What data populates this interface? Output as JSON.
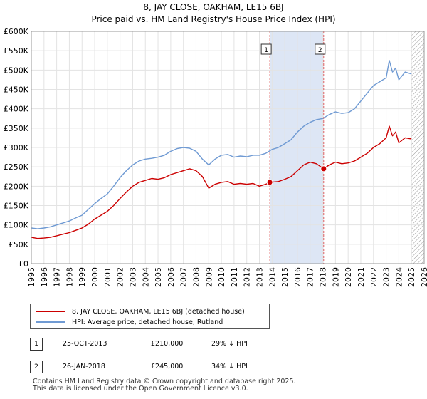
{
  "chart_data": {
    "type": "line",
    "title": "8, JAY CLOSE, OAKHAM, LE15 6BJ",
    "subtitle": "Price paid vs. HM Land Registry's House Price Index (HPI)",
    "x_tick_labels": [
      "1995",
      "1996",
      "1997",
      "1998",
      "1999",
      "2000",
      "2001",
      "2002",
      "2003",
      "2004",
      "2005",
      "2006",
      "2007",
      "2008",
      "2009",
      "2010",
      "2011",
      "2012",
      "2013",
      "2014",
      "2015",
      "2016",
      "2017",
      "2018",
      "2019",
      "2020",
      "2021",
      "2022",
      "2023",
      "2024",
      "2025",
      "2026"
    ],
    "y_tick_labels": [
      "£0",
      "£50K",
      "£100K",
      "£150K",
      "£200K",
      "£250K",
      "£300K",
      "£350K",
      "£400K",
      "£450K",
      "£500K",
      "£550K",
      "£600K"
    ],
    "xlim": [
      1995,
      2026
    ],
    "ylim": [
      0,
      600000
    ],
    "grid": true,
    "highlight_band": {
      "from": 2013.82,
      "to": 2018.07
    },
    "data_end": 2025.0,
    "series": [
      {
        "name": "8, JAY CLOSE, OAKHAM, LE15 6BJ (detached house)",
        "color": "#cc0000",
        "x": [
          1995.0,
          1995.5,
          1996.0,
          1996.5,
          1997.0,
          1997.5,
          1998.0,
          1998.5,
          1999.0,
          1999.5,
          2000.0,
          2000.5,
          2001.0,
          2001.5,
          2002.0,
          2002.5,
          2003.0,
          2003.5,
          2004.0,
          2004.5,
          2005.0,
          2005.5,
          2006.0,
          2006.5,
          2007.0,
          2007.5,
          2008.0,
          2008.5,
          2009.0,
          2009.5,
          2010.0,
          2010.5,
          2011.0,
          2011.5,
          2012.0,
          2012.5,
          2013.0,
          2013.5,
          2013.82,
          2014.5,
          2015.0,
          2015.5,
          2016.0,
          2016.5,
          2017.0,
          2017.5,
          2018.07,
          2018.5,
          2019.0,
          2019.5,
          2020.0,
          2020.5,
          2021.0,
          2021.5,
          2022.0,
          2022.5,
          2023.0,
          2023.25,
          2023.5,
          2023.75,
          2024.0,
          2024.5,
          2025.0
        ],
        "values": [
          68000,
          65000,
          66000,
          68000,
          72000,
          76000,
          80000,
          86000,
          92000,
          102000,
          115000,
          125000,
          135000,
          150000,
          168000,
          185000,
          200000,
          210000,
          215000,
          220000,
          218000,
          222000,
          230000,
          235000,
          240000,
          245000,
          240000,
          225000,
          195000,
          205000,
          210000,
          212000,
          205000,
          207000,
          205000,
          207000,
          200000,
          205000,
          210000,
          212000,
          218000,
          225000,
          240000,
          255000,
          262000,
          258000,
          245000,
          255000,
          262000,
          258000,
          260000,
          265000,
          275000,
          285000,
          300000,
          310000,
          325000,
          355000,
          330000,
          340000,
          312000,
          325000,
          322000
        ]
      },
      {
        "name": "HPI: Average price, detached house, Rutland",
        "color": "#6f9ad3",
        "x": [
          1995.0,
          1995.5,
          1996.0,
          1996.5,
          1997.0,
          1997.5,
          1998.0,
          1998.5,
          1999.0,
          1999.5,
          2000.0,
          2000.5,
          2001.0,
          2001.5,
          2002.0,
          2002.5,
          2003.0,
          2003.5,
          2004.0,
          2004.5,
          2005.0,
          2005.5,
          2006.0,
          2006.5,
          2007.0,
          2007.5,
          2008.0,
          2008.5,
          2009.0,
          2009.5,
          2010.0,
          2010.5,
          2011.0,
          2011.5,
          2012.0,
          2012.5,
          2013.0,
          2013.5,
          2014.0,
          2014.5,
          2015.0,
          2015.5,
          2016.0,
          2016.5,
          2017.0,
          2017.5,
          2018.0,
          2018.5,
          2019.0,
          2019.5,
          2020.0,
          2020.5,
          2021.0,
          2021.5,
          2022.0,
          2022.5,
          2023.0,
          2023.25,
          2023.5,
          2023.75,
          2024.0,
          2024.5,
          2025.0
        ],
        "values": [
          92000,
          90000,
          92000,
          95000,
          100000,
          105000,
          110000,
          118000,
          125000,
          140000,
          155000,
          168000,
          180000,
          200000,
          222000,
          240000,
          255000,
          265000,
          270000,
          272000,
          275000,
          280000,
          290000,
          297000,
          300000,
          298000,
          290000,
          270000,
          255000,
          270000,
          280000,
          282000,
          275000,
          278000,
          276000,
          280000,
          280000,
          285000,
          295000,
          300000,
          310000,
          320000,
          340000,
          355000,
          365000,
          372000,
          375000,
          385000,
          392000,
          388000,
          390000,
          400000,
          420000,
          440000,
          460000,
          470000,
          480000,
          525000,
          495000,
          505000,
          475000,
          495000,
          490000
        ]
      }
    ],
    "sales": [
      {
        "label": "1",
        "x": 2013.82,
        "value": 210000
      },
      {
        "label": "2",
        "x": 2018.07,
        "value": 245000
      }
    ]
  },
  "legend": {
    "property": "8, JAY CLOSE, OAKHAM, LE15 6BJ (detached house)",
    "hpi": "HPI: Average price, detached house, Rutland"
  },
  "sales_table": [
    {
      "num": "1",
      "date": "25-OCT-2013",
      "price": "£210,000",
      "hpi": "29% ↓ HPI"
    },
    {
      "num": "2",
      "date": "26-JAN-2018",
      "price": "£245,000",
      "hpi": "34% ↓ HPI"
    }
  ],
  "footer": {
    "line1": "Contains HM Land Registry data © Crown copyright and database right 2025.",
    "line2": "This data is licensed under the Open Government Licence v3.0."
  },
  "colors": {
    "property": "#cc0000",
    "hpi": "#6f9ad3",
    "band": "#dde6f5"
  }
}
